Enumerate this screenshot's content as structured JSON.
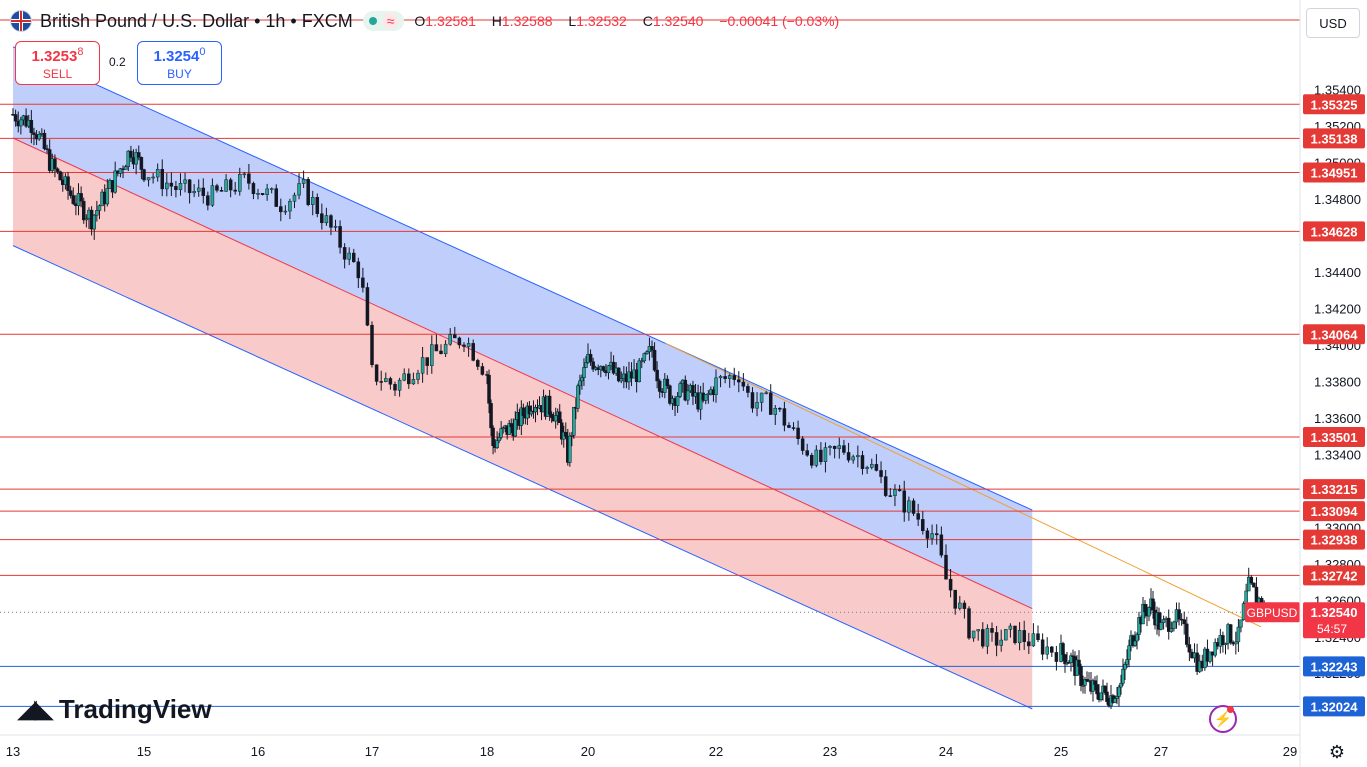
{
  "header": {
    "title": "British Pound / U.S. Dollar • 1h • FXCM",
    "status_icon": "≈",
    "ohlc": {
      "o_label": "O",
      "o": "1.32581",
      "h_label": "H",
      "h": "1.32588",
      "l_label": "L",
      "l": "1.32532",
      "c_label": "C",
      "c": "1.32540",
      "change": "−0.00041 (−0.03%)"
    }
  },
  "trade": {
    "sell_main": "1.3253",
    "sell_sup": "8",
    "sell_label": "SELL",
    "spread": "0.2",
    "buy_main": "1.3254",
    "buy_sup": "0",
    "buy_label": "BUY"
  },
  "currency": "USD",
  "watermark": "TradingView",
  "colors": {
    "up": "#26a69a",
    "down": "#f23645",
    "candle": "#131722",
    "resistance": "#e53935",
    "support": "#1e63d6",
    "channel_upper_fill": "#b8c9fb",
    "channel_lower_fill": "#f8c4c4",
    "projection": "#f0a030",
    "current_badge": "#f23645"
  },
  "chart_data": {
    "type": "candlestick",
    "symbol": "GBPUSD",
    "timeframe": "1h",
    "ylim": [
      1.3196,
      1.3548
    ],
    "y_ticks": [
      "1.35400",
      "1.35200",
      "1.35000",
      "1.34800",
      "1.34400",
      "1.34200",
      "1.34000",
      "1.33800",
      "1.33600",
      "1.33400",
      "1.33000",
      "1.32800",
      "1.32600",
      "1.32400",
      "1.32200"
    ],
    "x_ticks": [
      "13",
      "15",
      "16",
      "17",
      "18",
      "20",
      "22",
      "23",
      "24",
      "25",
      "27",
      "29"
    ],
    "horizontal_levels": [
      {
        "price": "1.35325",
        "kind": "resistance"
      },
      {
        "price": "1.35138",
        "kind": "resistance"
      },
      {
        "price": "1.34951",
        "kind": "resistance"
      },
      {
        "price": "1.34628",
        "kind": "resistance"
      },
      {
        "price": "1.34064",
        "kind": "resistance"
      },
      {
        "price": "1.33501",
        "kind": "resistance"
      },
      {
        "price": "1.33215",
        "kind": "resistance"
      },
      {
        "price": "1.33094",
        "kind": "resistance"
      },
      {
        "price": "1.32938",
        "kind": "resistance"
      },
      {
        "price": "1.32742",
        "kind": "resistance"
      },
      {
        "price": "1.32243",
        "kind": "support"
      },
      {
        "price": "1.32024",
        "kind": "support"
      }
    ],
    "current_price": {
      "symbol": "GBPUSD",
      "price": "1.32540",
      "countdown": "54:57"
    },
    "regression_channel": {
      "start_day": 13.0,
      "end_day": 24.75,
      "upper_start": 1.3564,
      "upper_end": 1.331,
      "mid_start": 1.3514,
      "mid_end": 1.3256,
      "lower_start": 1.3455,
      "lower_end": 1.3201,
      "projection_end_day": 28.55,
      "projection_end_price": 1.3246
    },
    "price_path": [
      [
        13.0,
        1.3527
      ],
      [
        13.3,
        1.3522
      ],
      [
        13.6,
        1.3498
      ],
      [
        13.9,
        1.3482
      ],
      [
        14.2,
        1.347
      ],
      [
        14.5,
        1.3488
      ],
      [
        14.8,
        1.3508
      ],
      [
        15.0,
        1.3496
      ],
      [
        15.3,
        1.3486
      ],
      [
        15.6,
        1.3482
      ],
      [
        15.9,
        1.3491
      ],
      [
        16.2,
        1.3478
      ],
      [
        16.4,
        1.3486
      ],
      [
        16.6,
        1.3468
      ],
      [
        16.8,
        1.3448
      ],
      [
        16.9,
        1.344
      ],
      [
        17.0,
        1.3385
      ],
      [
        17.2,
        1.3378
      ],
      [
        17.4,
        1.339
      ],
      [
        17.6,
        1.3398
      ],
      [
        17.8,
        1.3405
      ],
      [
        18.0,
        1.3385
      ],
      [
        18.1,
        1.3345
      ],
      [
        18.3,
        1.3352
      ],
      [
        18.6,
        1.3358
      ],
      [
        18.9,
        1.337
      ],
      [
        19.1,
        1.3368
      ],
      [
        19.3,
        1.3365
      ],
      [
        19.5,
        1.3352
      ],
      [
        19.6,
        1.334
      ],
      [
        19.8,
        1.3375
      ],
      [
        20.0,
        1.3392
      ],
      [
        20.3,
        1.339
      ],
      [
        20.5,
        1.338
      ],
      [
        20.8,
        1.3386
      ],
      [
        21.0,
        1.3398
      ],
      [
        21.1,
        1.3382
      ],
      [
        21.3,
        1.3372
      ],
      [
        21.5,
        1.3376
      ],
      [
        21.8,
        1.3368
      ],
      [
        22.0,
        1.338
      ],
      [
        22.2,
        1.3385
      ],
      [
        22.3,
        1.337
      ],
      [
        22.5,
        1.3368
      ],
      [
        22.7,
        1.335
      ],
      [
        22.9,
        1.3336
      ],
      [
        23.1,
        1.3344
      ],
      [
        23.3,
        1.3338
      ],
      [
        23.5,
        1.3322
      ],
      [
        23.7,
        1.331
      ],
      [
        23.9,
        1.3296
      ],
      [
        24.0,
        1.3272
      ],
      [
        24.2,
        1.3245
      ],
      [
        24.4,
        1.3238
      ],
      [
        24.6,
        1.3242
      ],
      [
        24.8,
        1.3236
      ],
      [
        25.0,
        1.3232
      ],
      [
        25.2,
        1.3228
      ],
      [
        25.4,
        1.3218
      ],
      [
        25.6,
        1.3212
      ],
      [
        25.8,
        1.321
      ],
      [
        26.0,
        1.3208
      ],
      [
        26.2,
        1.3214
      ],
      [
        26.4,
        1.3238
      ],
      [
        26.6,
        1.3252
      ],
      [
        26.8,
        1.3258
      ],
      [
        27.0,
        1.3245
      ],
      [
        27.2,
        1.3252
      ],
      [
        27.4,
        1.324
      ],
      [
        27.6,
        1.3224
      ],
      [
        27.8,
        1.3236
      ],
      [
        28.0,
        1.3242
      ],
      [
        28.2,
        1.324
      ],
      [
        28.35,
        1.3268
      ],
      [
        28.5,
        1.3262
      ],
      [
        28.62,
        1.3254
      ]
    ]
  }
}
